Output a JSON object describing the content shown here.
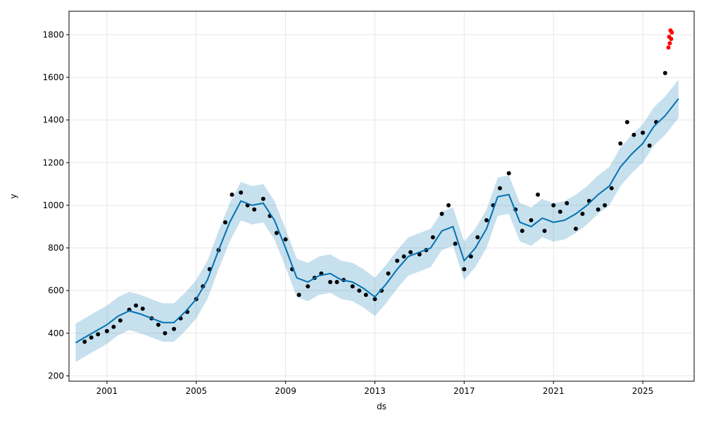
{
  "chart_data": {
    "type": "scatter",
    "title": "",
    "xlabel": "ds",
    "ylabel": "y",
    "grid": true,
    "xlim": [
      1999.3,
      2027.3
    ],
    "ylim": [
      175,
      1910
    ],
    "x_ticks": [
      2001,
      2005,
      2009,
      2013,
      2017,
      2021,
      2025
    ],
    "x_tick_labels": [
      "2001",
      "2005",
      "2009",
      "2013",
      "2017",
      "2021",
      "2025"
    ],
    "y_ticks": [
      200,
      400,
      600,
      800,
      1000,
      1200,
      1400,
      1600,
      1800
    ],
    "y_tick_labels": [
      "200",
      "400",
      "600",
      "800",
      "1000",
      "1200",
      "1400",
      "1600",
      "1800"
    ],
    "colors": {
      "actual_points": "#000000",
      "recent_points": "#ff0000",
      "forecast_line": "#0072B2",
      "uncertainty_band": "#0072B2",
      "grid": "#e6e6e6"
    },
    "series": [
      {
        "role": "observed",
        "x": [
          2000.0,
          2000.3,
          2000.6,
          2001.0,
          2001.3,
          2001.6,
          2002.0,
          2002.3,
          2002.6,
          2003.0,
          2003.3,
          2003.6,
          2004.0,
          2004.3,
          2004.6,
          2005.0,
          2005.3,
          2005.6,
          2006.0,
          2006.3,
          2006.6,
          2007.0,
          2007.3,
          2007.6,
          2008.0,
          2008.3,
          2008.6,
          2009.0,
          2009.3,
          2009.6,
          2010.0,
          2010.3,
          2010.6,
          2011.0,
          2011.3,
          2011.6,
          2012.0,
          2012.3,
          2012.6,
          2013.0,
          2013.3,
          2013.6,
          2014.0,
          2014.3,
          2014.6,
          2015.0,
          2015.3,
          2015.6,
          2016.0,
          2016.3,
          2016.6,
          2017.0,
          2017.3,
          2017.6,
          2018.0,
          2018.3,
          2018.6,
          2019.0,
          2019.3,
          2019.6,
          2020.0,
          2020.3,
          2020.6,
          2021.0,
          2021.3,
          2021.6,
          2022.0,
          2022.3,
          2022.6,
          2023.0,
          2023.3,
          2023.6,
          2024.0,
          2024.3,
          2024.6,
          2025.0,
          2025.3,
          2025.6,
          2026.0
        ],
        "y": [
          360,
          380,
          395,
          410,
          430,
          460,
          510,
          530,
          515,
          470,
          440,
          400,
          420,
          470,
          500,
          560,
          620,
          700,
          790,
          920,
          1050,
          1060,
          1000,
          980,
          1030,
          950,
          870,
          840,
          700,
          580,
          620,
          660,
          680,
          640,
          640,
          650,
          620,
          600,
          580,
          560,
          600,
          680,
          740,
          760,
          780,
          770,
          790,
          850,
          960,
          1000,
          820,
          700,
          760,
          850,
          930,
          1000,
          1080,
          1150,
          980,
          880,
          930,
          1050,
          880,
          1000,
          970,
          1010,
          890,
          960,
          1020,
          980,
          1000,
          1080,
          1290,
          1390,
          1330,
          1340,
          1280,
          1390,
          1620
        ]
      },
      {
        "role": "recent",
        "x": [
          2026.15,
          2026.18,
          2026.21,
          2026.24,
          2026.27,
          2026.3
        ],
        "y": [
          1740,
          1790,
          1760,
          1820,
          1780,
          1810
        ]
      },
      {
        "role": "forecast",
        "x": [
          1999.6,
          2000.0,
          2000.5,
          2001.0,
          2001.5,
          2002.0,
          2002.5,
          2003.0,
          2003.5,
          2004.0,
          2004.5,
          2005.0,
          2005.5,
          2006.0,
          2006.5,
          2007.0,
          2007.5,
          2008.0,
          2008.5,
          2009.0,
          2009.5,
          2010.0,
          2010.5,
          2011.0,
          2011.5,
          2012.0,
          2012.5,
          2013.0,
          2013.5,
          2014.0,
          2014.5,
          2015.0,
          2015.5,
          2016.0,
          2016.5,
          2017.0,
          2017.5,
          2018.0,
          2018.5,
          2019.0,
          2019.5,
          2020.0,
          2020.5,
          2021.0,
          2021.5,
          2022.0,
          2022.5,
          2023.0,
          2023.5,
          2024.0,
          2024.5,
          2025.0,
          2025.5,
          2026.0,
          2026.6
        ],
        "y": [
          355,
          380,
          410,
          440,
          480,
          505,
          490,
          470,
          450,
          450,
          500,
          560,
          650,
          790,
          920,
          1020,
          1000,
          1010,
          930,
          800,
          660,
          640,
          670,
          680,
          650,
          640,
          610,
          570,
          630,
          700,
          760,
          780,
          800,
          880,
          900,
          740,
          800,
          890,
          1040,
          1050,
          920,
          900,
          940,
          920,
          930,
          960,
          1000,
          1050,
          1090,
          1180,
          1240,
          1290,
          1370,
          1420,
          1500
        ]
      },
      {
        "role": "band_lower",
        "x": [
          1999.6,
          2000.0,
          2000.5,
          2001.0,
          2001.5,
          2002.0,
          2002.5,
          2003.0,
          2003.5,
          2004.0,
          2004.5,
          2005.0,
          2005.5,
          2006.0,
          2006.5,
          2007.0,
          2007.5,
          2008.0,
          2008.5,
          2009.0,
          2009.5,
          2010.0,
          2010.5,
          2011.0,
          2011.5,
          2012.0,
          2012.5,
          2013.0,
          2013.5,
          2014.0,
          2014.5,
          2015.0,
          2015.5,
          2016.0,
          2016.5,
          2017.0,
          2017.5,
          2018.0,
          2018.5,
          2019.0,
          2019.5,
          2020.0,
          2020.5,
          2021.0,
          2021.5,
          2022.0,
          2022.5,
          2023.0,
          2023.5,
          2024.0,
          2024.5,
          2025.0,
          2025.5,
          2026.0,
          2026.6
        ],
        "y": [
          265,
          290,
          320,
          350,
          390,
          415,
          400,
          380,
          360,
          360,
          410,
          470,
          560,
          700,
          830,
          930,
          910,
          920,
          840,
          710,
          570,
          550,
          580,
          590,
          560,
          550,
          520,
          480,
          540,
          610,
          670,
          690,
          710,
          790,
          810,
          650,
          710,
          800,
          950,
          960,
          830,
          810,
          850,
          830,
          840,
          870,
          910,
          960,
          1000,
          1090,
          1150,
          1200,
          1280,
          1330,
          1410
        ]
      },
      {
        "role": "band_upper",
        "x": [
          1999.6,
          2000.0,
          2000.5,
          2001.0,
          2001.5,
          2002.0,
          2002.5,
          2003.0,
          2003.5,
          2004.0,
          2004.5,
          2005.0,
          2005.5,
          2006.0,
          2006.5,
          2007.0,
          2007.5,
          2008.0,
          2008.5,
          2009.0,
          2009.5,
          2010.0,
          2010.5,
          2011.0,
          2011.5,
          2012.0,
          2012.5,
          2013.0,
          2013.5,
          2014.0,
          2014.5,
          2015.0,
          2015.5,
          2016.0,
          2016.5,
          2017.0,
          2017.5,
          2018.0,
          2018.5,
          2019.0,
          2019.5,
          2020.0,
          2020.5,
          2021.0,
          2021.5,
          2022.0,
          2022.5,
          2023.0,
          2023.5,
          2024.0,
          2024.5,
          2025.0,
          2025.5,
          2026.0,
          2026.6
        ],
        "y": [
          445,
          470,
          500,
          530,
          570,
          595,
          580,
          560,
          540,
          540,
          590,
          650,
          740,
          880,
          1010,
          1110,
          1090,
          1100,
          1020,
          890,
          750,
          730,
          760,
          770,
          740,
          730,
          700,
          660,
          720,
          790,
          850,
          870,
          890,
          970,
          990,
          830,
          890,
          980,
          1130,
          1140,
          1010,
          990,
          1030,
          1010,
          1020,
          1050,
          1090,
          1140,
          1180,
          1270,
          1330,
          1380,
          1460,
          1510,
          1590
        ]
      }
    ]
  }
}
